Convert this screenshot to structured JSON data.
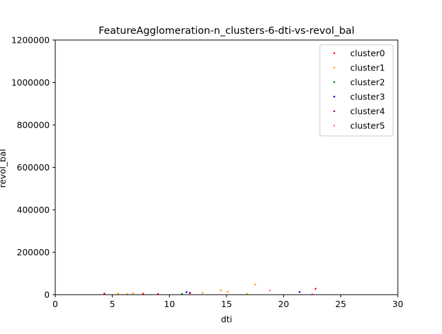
{
  "chart_data": {
    "type": "scatter",
    "title": "FeatureAgglomeration-n_clusters-6-dti-vs-revol_bal",
    "xlabel": "dti",
    "ylabel": "revol_bal",
    "xlim": [
      0,
      30
    ],
    "ylim": [
      0,
      1200000
    ],
    "x_ticks": [
      0,
      5,
      10,
      15,
      20,
      25,
      30
    ],
    "y_ticks": [
      0,
      200000,
      400000,
      600000,
      800000,
      1000000,
      1200000
    ],
    "grid": false,
    "legend_position": "top-right",
    "series": [
      {
        "name": "cluster0",
        "color": "#ff0000",
        "points": [
          [
            4.3,
            5000
          ],
          [
            7.7,
            4500
          ],
          [
            9.0,
            3000
          ],
          [
            11.8,
            7000
          ],
          [
            22.8,
            28000
          ]
        ]
      },
      {
        "name": "cluster1",
        "color": "#ffa500",
        "points": [
          [
            5.5,
            5000
          ],
          [
            6.3,
            3000
          ],
          [
            6.8,
            6000
          ],
          [
            12.9,
            9000
          ],
          [
            14.5,
            20000
          ],
          [
            15.1,
            14000
          ],
          [
            16.8,
            3500
          ],
          [
            17.5,
            48000
          ]
        ]
      },
      {
        "name": "cluster2",
        "color": "#008000",
        "points": [
          [
            11.1,
            3000
          ]
        ]
      },
      {
        "name": "cluster3",
        "color": "#0000cd",
        "points": [
          [
            11.5,
            12000
          ],
          [
            21.4,
            13000
          ]
        ]
      },
      {
        "name": "cluster4",
        "color": "#800080",
        "points": [
          [
            11.8,
            9000
          ]
        ]
      },
      {
        "name": "cluster5",
        "color": "#ff69b4",
        "points": [
          [
            18.8,
            20000
          ],
          [
            22.5,
            2000
          ]
        ]
      }
    ]
  }
}
